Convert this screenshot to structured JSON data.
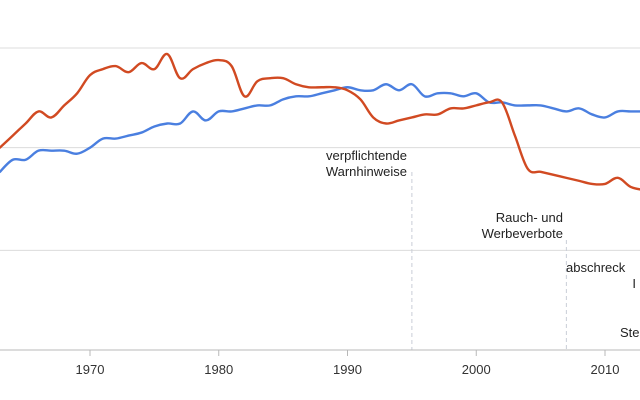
{
  "chart_data": {
    "type": "line",
    "xlim": [
      1963,
      2013
    ],
    "ylim": [
      0,
      100
    ],
    "grid": true,
    "ticks": [
      {
        "x": 1970,
        "label": "1970"
      },
      {
        "x": 1980,
        "label": "1980"
      },
      {
        "x": 1990,
        "label": "1990"
      },
      {
        "x": 2000,
        "label": "2000"
      },
      {
        "x": 2010,
        "label": "2010"
      }
    ],
    "grid_y": [
      100,
      67,
      33
    ],
    "series": [
      {
        "color": "#4a7fe0",
        "x": [
          1963,
          1964,
          1965,
          1966,
          1967,
          1968,
          1969,
          1970,
          1971,
          1972,
          1973,
          1974,
          1975,
          1976,
          1977,
          1978,
          1979,
          1980,
          1981,
          1982,
          1983,
          1984,
          1985,
          1986,
          1987,
          1988,
          1989,
          1990,
          1991,
          1992,
          1993,
          1994,
          1995,
          1996,
          1997,
          1998,
          1999,
          2000,
          2001,
          2002,
          2003,
          2004,
          2005,
          2006,
          2007,
          2008,
          2009,
          2010,
          2011,
          2012,
          2013
        ],
        "values": [
          59,
          63,
          63,
          66,
          66,
          66,
          65,
          67,
          70,
          70,
          71,
          72,
          74,
          75,
          75,
          79,
          76,
          79,
          79,
          80,
          81,
          81,
          83,
          84,
          84,
          85,
          86,
          87,
          86,
          86,
          88,
          86,
          88,
          84,
          85,
          85,
          84,
          85,
          82,
          82,
          81,
          81,
          81,
          80,
          79,
          80,
          78,
          77,
          79,
          79,
          79
        ]
      },
      {
        "color": "#d14a22",
        "x": [
          1963,
          1964,
          1965,
          1966,
          1967,
          1968,
          1969,
          1970,
          1971,
          1972,
          1973,
          1974,
          1975,
          1976,
          1977,
          1978,
          1979,
          1980,
          1981,
          1982,
          1983,
          1984,
          1985,
          1986,
          1987,
          1988,
          1989,
          1990,
          1991,
          1992,
          1993,
          1994,
          1995,
          1996,
          1997,
          1998,
          1999,
          2000,
          2001,
          2002,
          2003,
          2004,
          2005,
          2006,
          2007,
          2008,
          2009,
          2010,
          2011,
          2012,
          2013
        ],
        "values": [
          67,
          71,
          75,
          79,
          77,
          81,
          85,
          91,
          93,
          94,
          92,
          95,
          93,
          98,
          90,
          93,
          95,
          96,
          94,
          84,
          89,
          90,
          90,
          88,
          87,
          87,
          87,
          86,
          83,
          77,
          75,
          76,
          77,
          78,
          78,
          80,
          80,
          81,
          82,
          82,
          71,
          60,
          59,
          58,
          57,
          56,
          55,
          55,
          57,
          54,
          53
        ]
      }
    ],
    "annotations": [
      {
        "x": 1995,
        "lines": [
          "verpflichtende",
          "Warnhinweise"
        ]
      },
      {
        "x": 2007,
        "lines": [
          "Rauch- und",
          "Werbeverbote"
        ]
      },
      {
        "x": 2013,
        "lines": [
          "abschreck",
          "I"
        ]
      },
      {
        "x": 2013,
        "lines": [
          "Ste"
        ]
      }
    ]
  }
}
